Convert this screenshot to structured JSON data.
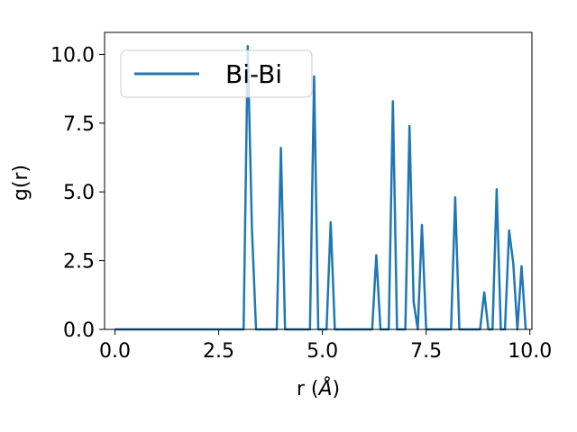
{
  "chart_data": {
    "type": "line",
    "title": "",
    "xlabel_main": "r (",
    "xlabel_unit": "Å",
    "xlabel_close": ")",
    "ylabel": "g(r)",
    "xlim": [
      -0.25,
      10.05
    ],
    "ylim": [
      0,
      10.8
    ],
    "xticks": [
      0.0,
      2.5,
      5.0,
      7.5,
      10.0
    ],
    "xtick_labels": [
      "0.0",
      "2.5",
      "5.0",
      "7.5",
      "10.0"
    ],
    "yticks": [
      0.0,
      2.5,
      5.0,
      7.5,
      10.0
    ],
    "ytick_labels": [
      "0.0",
      "2.5",
      "5.0",
      "7.5",
      "10.0"
    ],
    "grid": false,
    "legend_position": "top-left",
    "series": [
      {
        "name": "Bi-Bi",
        "color": "#1f77b4",
        "x": [
          0,
          3.1,
          3.2,
          3.3,
          3.4,
          3.9,
          4.0,
          4.1,
          4.7,
          4.8,
          4.9,
          5.1,
          5.2,
          5.3,
          6.2,
          6.3,
          6.4,
          6.6,
          6.7,
          6.8,
          7.0,
          7.1,
          7.2,
          7.3,
          7.4,
          7.5,
          7.6,
          8.1,
          8.2,
          8.3,
          8.8,
          8.9,
          9.0,
          9.1,
          9.2,
          9.3,
          9.4,
          9.5,
          9.6,
          9.7,
          9.8,
          9.9
        ],
        "y": [
          0,
          0,
          10.3,
          3.7,
          0,
          0,
          6.6,
          0,
          0,
          9.2,
          0,
          0,
          3.9,
          0,
          0,
          2.7,
          0,
          0,
          8.3,
          0,
          0,
          7.4,
          1.0,
          0,
          3.8,
          0,
          0,
          0,
          4.8,
          0,
          0,
          1.35,
          0,
          0,
          5.1,
          0,
          0,
          3.6,
          2.4,
          0,
          2.3,
          0
        ]
      }
    ]
  }
}
